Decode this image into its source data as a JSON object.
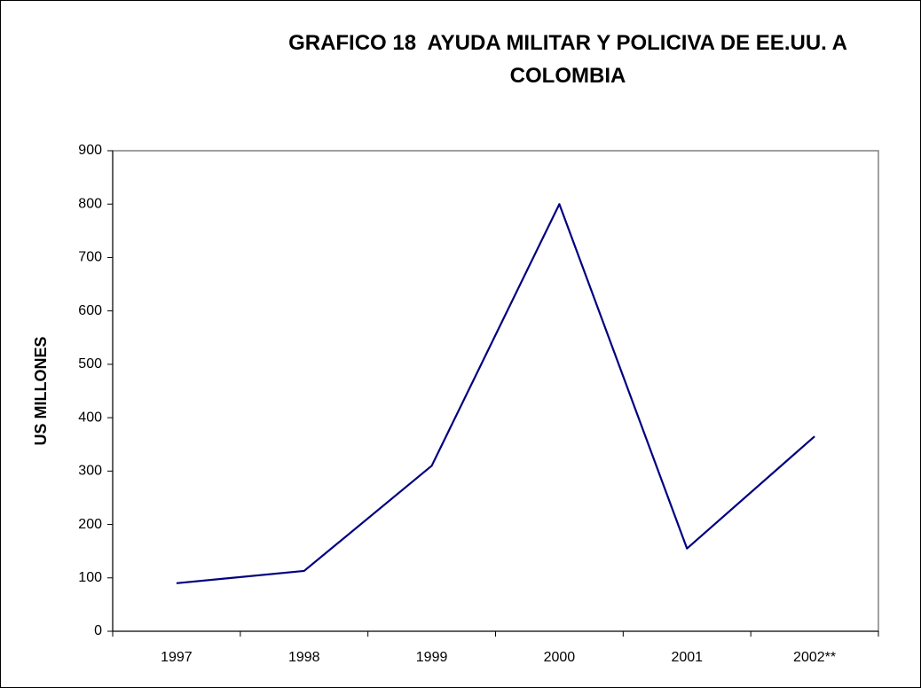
{
  "chart_data": {
    "type": "line",
    "title": "GRAFICO 18  AYUDA MILITAR Y POLICIVA DE EE.UU. A COLOMBIA",
    "y_label": "US MILLONES",
    "categories": [
      "1997",
      "1998",
      "1999",
      "2000",
      "2001",
      "2002**"
    ],
    "values": [
      90,
      113,
      310,
      800,
      155,
      365
    ],
    "color": "#000080",
    "ylim": [
      0,
      900
    ],
    "yticks": [
      0,
      100,
      200,
      300,
      400,
      500,
      600,
      700,
      800,
      900
    ],
    "grid": false
  }
}
